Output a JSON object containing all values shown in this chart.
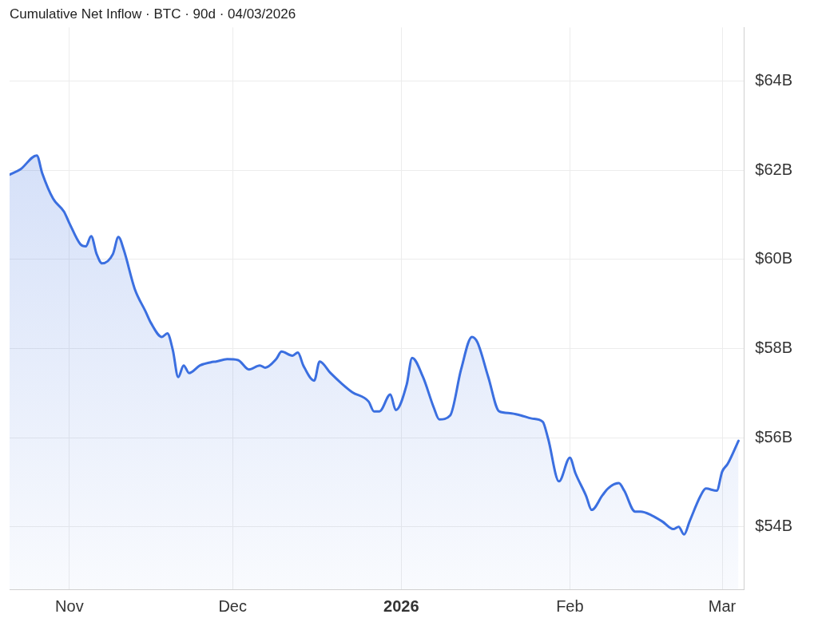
{
  "chart_data": {
    "type": "area",
    "title": "Cumulative Net Inflow · BTC · 90d · 04/03/2026",
    "x": [
      "2025-10-21",
      "2025-10-23",
      "2025-10-26",
      "2025-10-27",
      "2025-10-29",
      "2025-10-31",
      "2025-11-01",
      "2025-11-03",
      "2025-11-04",
      "2025-11-05",
      "2025-11-06",
      "2025-11-07",
      "2025-11-09",
      "2025-11-10",
      "2025-11-11",
      "2025-11-13",
      "2025-11-15",
      "2025-11-16",
      "2025-11-18",
      "2025-11-19",
      "2025-11-20",
      "2025-11-21",
      "2025-11-22",
      "2025-11-23",
      "2025-11-25",
      "2025-11-27",
      "2025-11-28",
      "2025-11-30",
      "2025-12-02",
      "2025-12-04",
      "2025-12-06",
      "2025-12-07",
      "2025-12-09",
      "2025-12-10",
      "2025-12-12",
      "2025-12-13",
      "2025-12-14",
      "2025-12-16",
      "2025-12-17",
      "2025-12-19",
      "2025-12-21",
      "2025-12-23",
      "2025-12-26",
      "2025-12-27",
      "2025-12-28",
      "2025-12-30",
      "2025-12-31",
      "2026-01-02",
      "2026-01-03",
      "2026-01-05",
      "2026-01-07",
      "2026-01-08",
      "2026-01-10",
      "2026-01-12",
      "2026-01-14",
      "2026-01-15",
      "2026-01-17",
      "2026-01-19",
      "2026-01-21",
      "2026-01-23",
      "2026-01-25",
      "2026-01-27",
      "2026-01-28",
      "2026-01-30",
      "2026-02-01",
      "2026-02-02",
      "2026-02-04",
      "2026-02-05",
      "2026-02-07",
      "2026-02-08",
      "2026-02-10",
      "2026-02-11",
      "2026-02-13",
      "2026-02-14",
      "2026-02-16",
      "2026-02-18",
      "2026-02-20",
      "2026-02-21",
      "2026-02-22",
      "2026-02-23",
      "2026-02-25",
      "2026-02-26",
      "2026-02-28",
      "2026-03-01",
      "2026-03-02",
      "2026-03-04"
    ],
    "series": [
      {
        "color": "#3b6fe0",
        "values": [
          61.9,
          62.02,
          62.33,
          61.93,
          61.36,
          61.07,
          60.81,
          60.34,
          60.29,
          60.52,
          60.12,
          59.91,
          60.12,
          60.5,
          60.21,
          59.34,
          58.83,
          58.57,
          58.26,
          58.34,
          57.97,
          57.36,
          57.62,
          57.45,
          57.62,
          57.69,
          57.71,
          57.76,
          57.74,
          57.53,
          57.62,
          57.57,
          57.76,
          57.93,
          57.84,
          57.91,
          57.62,
          57.28,
          57.71,
          57.45,
          57.22,
          57.02,
          56.81,
          56.59,
          56.59,
          56.97,
          56.62,
          57.19,
          57.79,
          57.36,
          56.67,
          56.41,
          56.5,
          57.53,
          58.26,
          58.14,
          57.36,
          56.59,
          56.55,
          56.5,
          56.43,
          56.36,
          55.98,
          55.02,
          55.55,
          55.21,
          54.69,
          54.38,
          54.71,
          54.86,
          54.98,
          54.81,
          54.34,
          54.34,
          54.26,
          54.12,
          53.95,
          54.0,
          53.83,
          54.12,
          54.69,
          54.86,
          54.81,
          55.24,
          55.41,
          55.93
        ]
      }
    ],
    "xlim": [
      "2025-10-21",
      "2026-03-05"
    ],
    "xticks": [
      {
        "value": "2025-11-01",
        "label": "Nov"
      },
      {
        "value": "2025-12-01",
        "label": "Dec"
      },
      {
        "value": "2026-01-01",
        "label": "2026"
      },
      {
        "value": "2026-02-01",
        "label": "Feb"
      },
      {
        "value": "2026-03-01",
        "label": "Mar"
      }
    ],
    "ylim": [
      52.6,
      65.2
    ],
    "yticks": [
      {
        "value": 54,
        "label": "$54B"
      },
      {
        "value": 56,
        "label": "$56B"
      },
      {
        "value": 58,
        "label": "$58B"
      },
      {
        "value": 60,
        "label": "$60B"
      },
      {
        "value": 62,
        "label": "$62B"
      },
      {
        "value": 64,
        "label": "$64B"
      }
    ],
    "grid": true,
    "legend": false,
    "marker": "none",
    "line_style": "solid"
  }
}
